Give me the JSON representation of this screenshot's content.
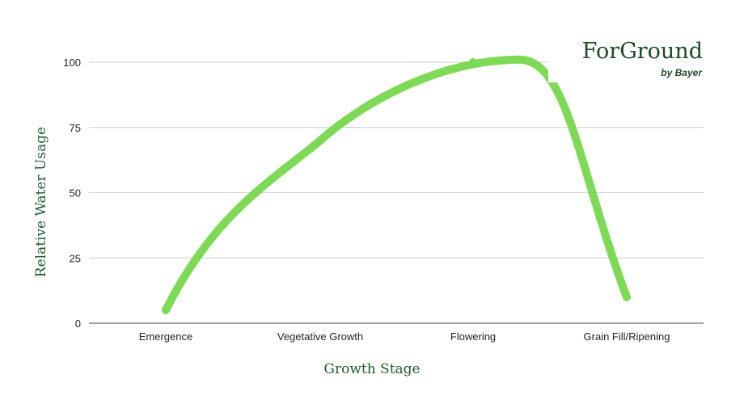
{
  "chart_data": {
    "type": "line",
    "categories": [
      "Emergence",
      "Vegetative Growth",
      "Flowering",
      "Grain Fill/Ripening"
    ],
    "series": [
      {
        "values": [
          5,
          70,
          100,
          10
        ],
        "color": "#7ed957",
        "smooth": true
      }
    ],
    "xlabel": "Growth Stage",
    "ylabel": "Relative Water Usage",
    "ylim": [
      0,
      100
    ],
    "yticks": [
      0,
      25,
      50,
      75,
      100
    ],
    "grid": true,
    "peak_x": 2.3,
    "peak_value": 101
  },
  "brand": {
    "name": "ForGround",
    "sub": "by Bayer",
    "color": "#1d4a2a"
  }
}
